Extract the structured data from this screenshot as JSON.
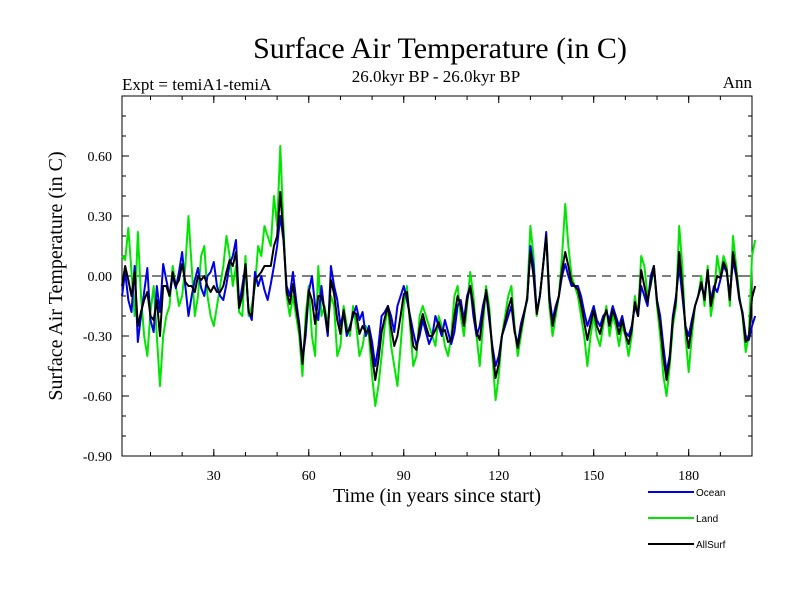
{
  "chart_data": {
    "type": "line",
    "title": "Surface Air Temperature (in C)",
    "subtitle": "26.0kyr BP - 26.0kyr BP",
    "left_label": "Expt = temiA1-temiA",
    "right_label": "Ann",
    "xlabel": "Time (in years since start)",
    "ylabel": "Surface Air Temperature (in C)",
    "xlim": [
      1,
      200
    ],
    "ylim": [
      -0.9,
      0.9
    ],
    "xticks": [
      30,
      60,
      90,
      120,
      150,
      180
    ],
    "yticks": [
      -0.9,
      -0.6,
      -0.3,
      0.0,
      0.3,
      0.6
    ],
    "ytick_labels": [
      "-0.90",
      "-0.60",
      "-0.30",
      "0.00",
      "0.30",
      "0.60"
    ],
    "zero_line": "dashed",
    "legend_position": "bottom-right",
    "series": [
      {
        "name": "Ocean",
        "color": "#0000e6",
        "values": [
          -0.1,
          0.02,
          -0.12,
          -0.18,
          0.05,
          -0.33,
          -0.2,
          -0.08,
          0.04,
          -0.22,
          -0.28,
          -0.05,
          -0.18,
          0.06,
          -0.02,
          -0.1,
          0.0,
          -0.06,
          0.02,
          0.12,
          -0.05,
          -0.2,
          -0.1,
          -0.02,
          0.04,
          -0.06,
          -0.1,
          0.0,
          0.02,
          0.07,
          -0.05,
          -0.1,
          -0.12,
          -0.04,
          0.06,
          0.1,
          0.18,
          -0.15,
          -0.05,
          0.05,
          -0.18,
          -0.22,
          0.02,
          -0.05,
          0.0,
          -0.07,
          -0.12,
          -0.04,
          0.05,
          0.15,
          0.3,
          0.18,
          -0.05,
          -0.1,
          0.02,
          -0.12,
          -0.24,
          -0.42,
          -0.3,
          -0.08,
          0.0,
          -0.15,
          -0.22,
          -0.05,
          -0.18,
          -0.3,
          0.05,
          -0.05,
          -0.12,
          -0.25,
          -0.18,
          -0.3,
          -0.25,
          -0.2,
          -0.15,
          -0.22,
          -0.18,
          -0.3,
          -0.25,
          -0.33,
          -0.45,
          -0.35,
          -0.2,
          -0.18,
          -0.15,
          -0.2,
          -0.28,
          -0.15,
          -0.1,
          -0.05,
          -0.12,
          -0.2,
          -0.28,
          -0.35,
          -0.3,
          -0.22,
          -0.28,
          -0.34,
          -0.3,
          -0.2,
          -0.25,
          -0.3,
          -0.22,
          -0.28,
          -0.34,
          -0.28,
          -0.15,
          -0.12,
          -0.22,
          -0.1,
          -0.05,
          -0.2,
          -0.3,
          -0.25,
          -0.15,
          -0.08,
          -0.22,
          -0.35,
          -0.45,
          -0.4,
          -0.3,
          -0.25,
          -0.2,
          -0.15,
          -0.28,
          -0.34,
          -0.24,
          -0.18,
          -0.12,
          0.15,
          0.05,
          -0.18,
          -0.1,
          0.05,
          0.22,
          -0.1,
          -0.22,
          -0.15,
          -0.1,
          0.0,
          0.06,
          0.0,
          -0.05,
          -0.05,
          -0.05,
          -0.1,
          -0.18,
          -0.25,
          -0.2,
          -0.15,
          -0.22,
          -0.25,
          -0.2,
          -0.18,
          -0.22,
          -0.15,
          -0.2,
          -0.25,
          -0.2,
          -0.28,
          -0.3,
          -0.25,
          -0.15,
          -0.2,
          -0.05,
          -0.1,
          -0.15,
          0.0,
          0.05,
          -0.12,
          -0.2,
          -0.35,
          -0.48,
          -0.4,
          -0.2,
          -0.1,
          0.05,
          -0.1,
          -0.25,
          -0.3,
          -0.22,
          -0.15,
          -0.1,
          -0.05,
          -0.1,
          0.02,
          -0.12,
          -0.05,
          -0.08,
          -0.02,
          0.05,
          0.02,
          -0.1,
          0.08,
          0.0,
          -0.12,
          -0.18,
          -0.3,
          -0.32,
          -0.25,
          -0.2
        ]
      },
      {
        "name": "Land",
        "color": "#00e600",
        "values": [
          0.1,
          0.08,
          0.24,
          0.02,
          -0.2,
          0.22,
          -0.1,
          -0.3,
          -0.4,
          -0.18,
          -0.05,
          -0.3,
          -0.55,
          -0.3,
          -0.2,
          -0.15,
          0.05,
          -0.05,
          -0.15,
          -0.1,
          0.05,
          0.3,
          0.05,
          -0.2,
          -0.1,
          0.1,
          0.15,
          -0.1,
          -0.2,
          -0.25,
          -0.15,
          -0.05,
          0.05,
          0.2,
          0.1,
          -0.05,
          0.05,
          -0.18,
          -0.2,
          0.1,
          -0.2,
          -0.15,
          -0.05,
          0.15,
          0.1,
          0.25,
          0.2,
          0.15,
          0.4,
          0.25,
          0.65,
          0.25,
          -0.1,
          -0.2,
          -0.1,
          -0.2,
          -0.3,
          -0.5,
          -0.2,
          -0.05,
          -0.3,
          -0.4,
          0.05,
          -0.2,
          -0.15,
          -0.25,
          -0.1,
          -0.15,
          -0.4,
          -0.35,
          -0.15,
          -0.25,
          -0.3,
          -0.15,
          -0.25,
          -0.4,
          -0.35,
          -0.25,
          -0.3,
          -0.5,
          -0.65,
          -0.55,
          -0.4,
          -0.25,
          -0.15,
          -0.35,
          -0.45,
          -0.55,
          -0.35,
          -0.15,
          -0.05,
          -0.25,
          -0.45,
          -0.4,
          -0.2,
          -0.15,
          -0.2,
          -0.25,
          -0.3,
          -0.35,
          -0.2,
          -0.25,
          -0.35,
          -0.4,
          -0.3,
          -0.1,
          -0.05,
          -0.2,
          -0.3,
          -0.15,
          0.02,
          -0.1,
          -0.3,
          -0.45,
          -0.25,
          -0.05,
          -0.15,
          -0.4,
          -0.62,
          -0.5,
          -0.3,
          -0.2,
          -0.1,
          -0.05,
          -0.25,
          -0.4,
          -0.3,
          -0.2,
          -0.1,
          0.25,
          0.1,
          -0.2,
          -0.1,
          0.05,
          0.2,
          -0.15,
          -0.3,
          -0.2,
          -0.1,
          0.1,
          0.36,
          0.15,
          0.0,
          -0.05,
          -0.1,
          -0.2,
          -0.3,
          -0.45,
          -0.3,
          -0.2,
          -0.3,
          -0.35,
          -0.25,
          -0.15,
          -0.3,
          -0.2,
          -0.25,
          -0.35,
          -0.25,
          -0.3,
          -0.4,
          -0.3,
          -0.1,
          -0.2,
          0.1,
          0.05,
          -0.1,
          -0.05,
          0.05,
          -0.15,
          -0.3,
          -0.5,
          -0.6,
          -0.45,
          -0.25,
          -0.15,
          0.25,
          0.05,
          -0.3,
          -0.48,
          -0.3,
          -0.15,
          -0.1,
          0.0,
          -0.15,
          0.05,
          -0.2,
          -0.1,
          0.1,
          0.0,
          0.1,
          0.05,
          -0.15,
          0.2,
          0.05,
          -0.1,
          -0.2,
          -0.38,
          -0.3,
          0.1,
          0.18
        ]
      },
      {
        "name": "AllSurf",
        "color": "#000000",
        "values": [
          -0.05,
          0.05,
          -0.02,
          -0.1,
          0.02,
          -0.25,
          -0.18,
          -0.12,
          -0.08,
          -0.2,
          -0.22,
          -0.12,
          -0.3,
          -0.05,
          -0.05,
          -0.1,
          0.02,
          -0.05,
          -0.02,
          0.06,
          -0.03,
          -0.05,
          -0.05,
          -0.08,
          0.0,
          -0.02,
          0.0,
          -0.05,
          -0.08,
          -0.05,
          -0.08,
          -0.08,
          -0.05,
          0.02,
          0.08,
          0.05,
          0.12,
          -0.16,
          -0.1,
          0.06,
          -0.18,
          -0.2,
          -0.02,
          0.0,
          0.02,
          0.05,
          0.05,
          0.05,
          0.15,
          0.2,
          0.42,
          0.2,
          -0.08,
          -0.14,
          -0.04,
          -0.16,
          -0.26,
          -0.44,
          -0.26,
          -0.07,
          -0.12,
          -0.24,
          -0.1,
          -0.1,
          -0.17,
          -0.28,
          -0.02,
          -0.09,
          -0.22,
          -0.29,
          -0.17,
          -0.28,
          -0.27,
          -0.18,
          -0.19,
          -0.29,
          -0.25,
          -0.28,
          -0.27,
          -0.4,
          -0.52,
          -0.42,
          -0.28,
          -0.21,
          -0.15,
          -0.26,
          -0.35,
          -0.3,
          -0.2,
          -0.09,
          -0.08,
          -0.22,
          -0.35,
          -0.37,
          -0.26,
          -0.19,
          -0.25,
          -0.3,
          -0.3,
          -0.27,
          -0.23,
          -0.28,
          -0.27,
          -0.33,
          -0.32,
          -0.2,
          -0.1,
          -0.15,
          -0.25,
          -0.12,
          -0.05,
          -0.15,
          -0.28,
          -0.32,
          -0.19,
          -0.07,
          -0.19,
          -0.37,
          -0.51,
          -0.44,
          -0.3,
          -0.23,
          -0.16,
          -0.11,
          -0.27,
          -0.36,
          -0.27,
          -0.19,
          -0.11,
          0.12,
          0.0,
          -0.19,
          -0.1,
          0.05,
          0.2,
          -0.12,
          -0.25,
          -0.17,
          -0.1,
          0.03,
          0.12,
          0.05,
          -0.03,
          -0.05,
          -0.07,
          -0.14,
          -0.23,
          -0.32,
          -0.24,
          -0.17,
          -0.25,
          -0.29,
          -0.22,
          -0.17,
          -0.25,
          -0.17,
          -0.22,
          -0.29,
          -0.22,
          -0.29,
          -0.34,
          -0.27,
          -0.13,
          -0.2,
          0.03,
          -0.05,
          -0.13,
          -0.04,
          0.05,
          -0.13,
          -0.24,
          -0.4,
          -0.52,
          -0.42,
          -0.22,
          -0.12,
          0.12,
          -0.05,
          -0.26,
          -0.36,
          -0.25,
          -0.15,
          -0.1,
          -0.03,
          -0.12,
          0.03,
          -0.15,
          -0.07,
          0.0,
          -0.01,
          0.07,
          0.03,
          -0.12,
          0.12,
          0.02,
          -0.11,
          -0.19,
          -0.33,
          -0.31,
          -0.11,
          -0.05
        ]
      }
    ]
  }
}
